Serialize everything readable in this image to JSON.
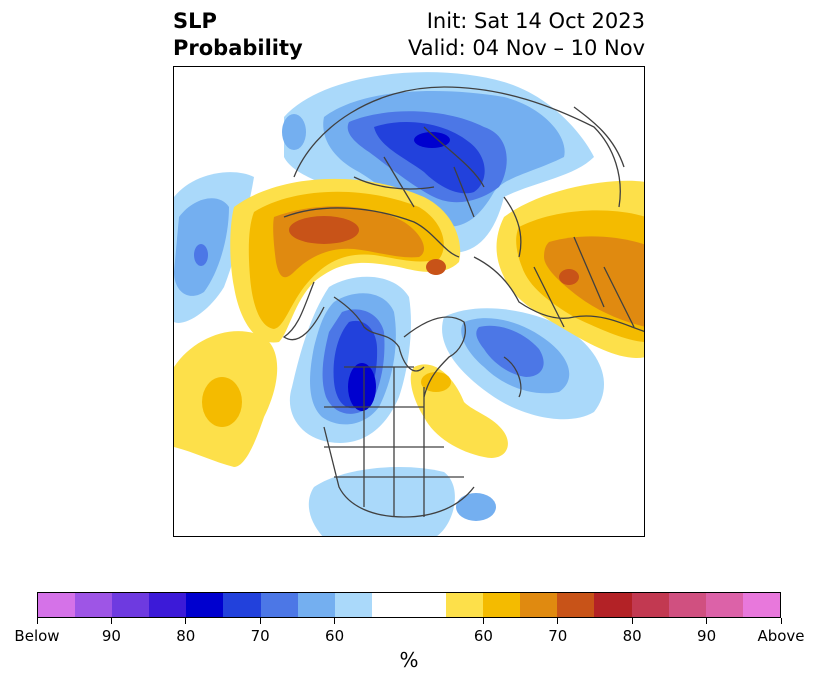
{
  "title": {
    "line1": "SLP",
    "line2": "Probability",
    "init": "Init: Sat 14 Oct 2023",
    "valid": "Valid: 04 Nov – 10 Nov"
  },
  "colorbar": {
    "unit": "%",
    "colors": [
      "#d572e8",
      "#9e55e6",
      "#6e3ae0",
      "#3c1ad8",
      "#0000cf",
      "#2241dc",
      "#4c77e6",
      "#74aff0",
      "#aad9fa",
      "#ffffff",
      "#ffffff",
      "#fde04a",
      "#f4bb00",
      "#e08a10",
      "#c85318",
      "#b32226",
      "#c23951",
      "#d05080",
      "#dc62a8",
      "#e878dc"
    ],
    "tick_labels": [
      "Below",
      "90",
      "80",
      "70",
      "60",
      "60",
      "70",
      "80",
      "90",
      "Above"
    ]
  },
  "map": {
    "below_colors": [
      "#aad9fa",
      "#74aff0",
      "#4c77e6",
      "#2241dc",
      "#0000cf"
    ],
    "above_colors": [
      "#fde04a",
      "#f4bb00",
      "#e08a10",
      "#c85318",
      "#b32226"
    ],
    "border_color": "#404040"
  }
}
